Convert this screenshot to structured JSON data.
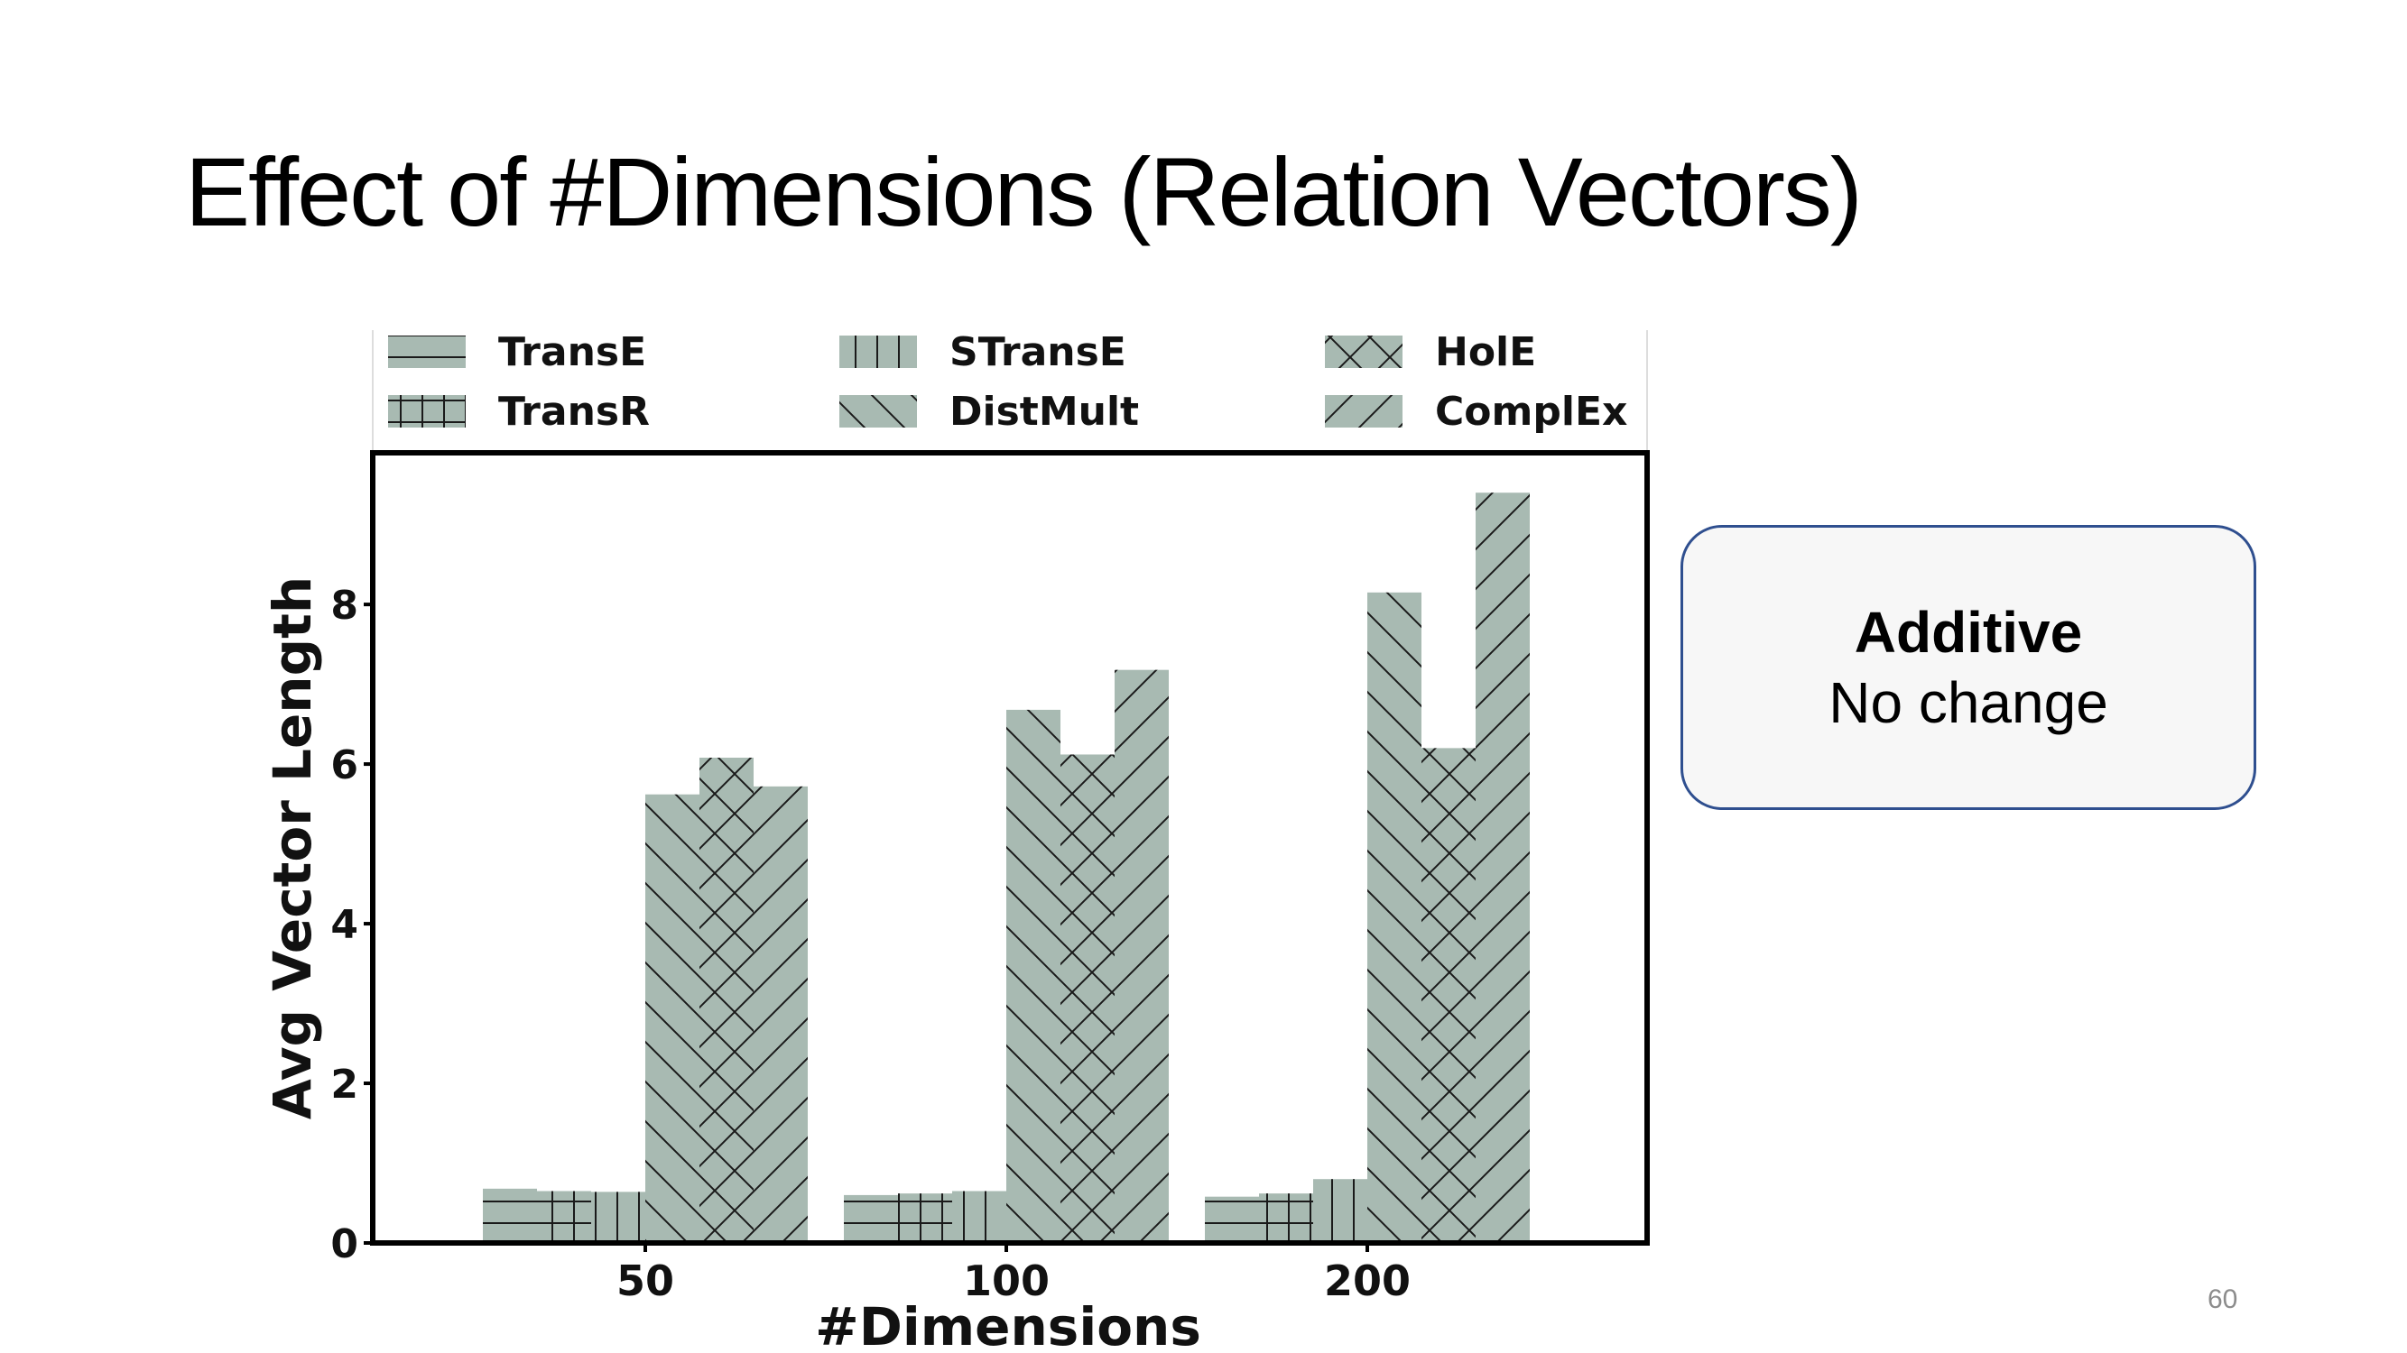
{
  "slide": {
    "title": "Effect of #Dimensions (Relation Vectors)",
    "page_number": "60"
  },
  "callout": {
    "heading": "Additive",
    "text": "No change"
  },
  "colors": {
    "bar_fill": "#a8bab2",
    "hatch": "#1a1a1a",
    "callout_border": "#2f4f8f"
  },
  "chart_data": {
    "type": "bar",
    "xlabel": "#Dimensions",
    "ylabel": "Avg Vector Length",
    "categories": [
      "50",
      "100",
      "200"
    ],
    "ylim": [
      0,
      9.9
    ],
    "yticks": [
      0,
      2,
      4,
      6,
      8
    ],
    "grid": false,
    "legend_position": "top",
    "series": [
      {
        "name": "TransE",
        "hatch": "horizontal",
        "values": [
          0.68,
          0.6,
          0.58
        ]
      },
      {
        "name": "TransR",
        "hatch": "grid",
        "values": [
          0.65,
          0.62,
          0.62
        ]
      },
      {
        "name": "STransE",
        "hatch": "vertical",
        "values": [
          0.64,
          0.65,
          0.8
        ]
      },
      {
        "name": "DistMult",
        "hatch": "backslash",
        "values": [
          5.62,
          6.68,
          8.15
        ]
      },
      {
        "name": "HolE",
        "hatch": "cross",
        "values": [
          6.08,
          6.12,
          6.2
        ]
      },
      {
        "name": "ComplEx",
        "hatch": "slash",
        "values": [
          5.72,
          7.18,
          9.4
        ]
      }
    ]
  }
}
